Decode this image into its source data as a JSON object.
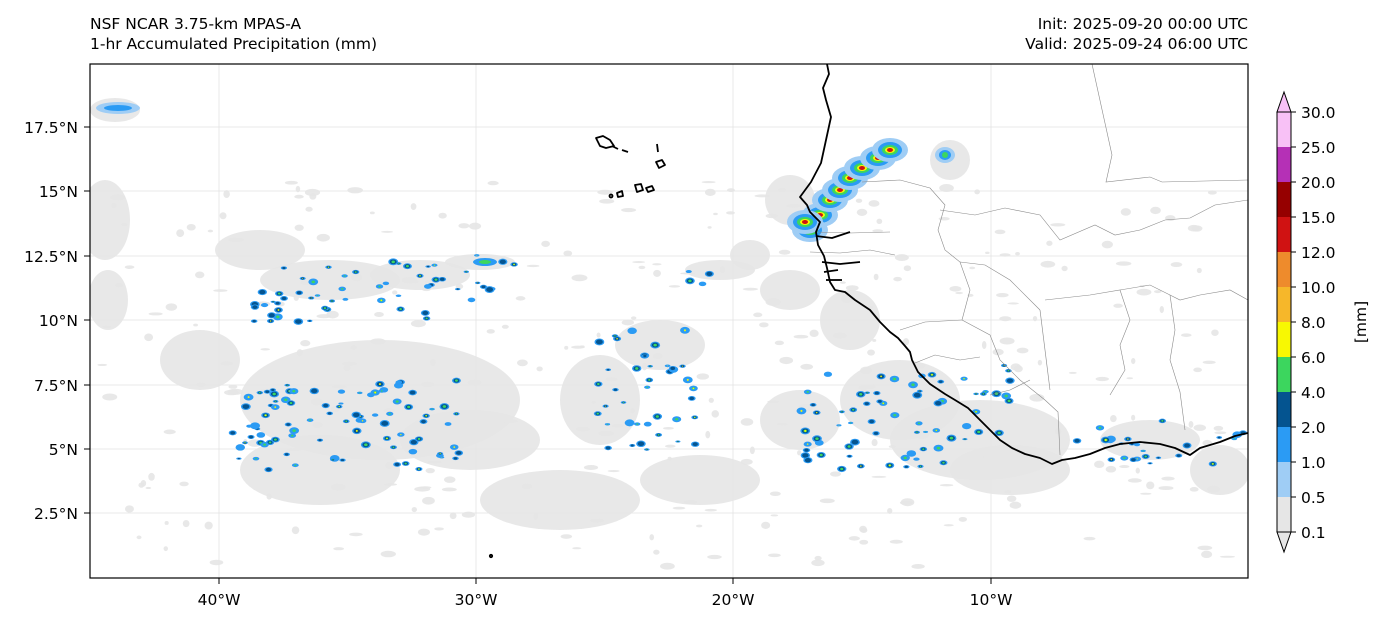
{
  "header": {
    "title_left_1": "NSF NCAR 3.75-km MPAS-A",
    "title_left_2": "1-hr Accumulated Precipitation (mm)",
    "init_label": "Init: 2025-09-20 00:00 UTC",
    "valid_label": "Valid: 2025-09-24 06:00 UTC"
  },
  "map": {
    "lat_ticks": [
      "17.5°N",
      "15°N",
      "12.5°N",
      "10°N",
      "7.5°N",
      "5°N",
      "2.5°N"
    ],
    "lon_ticks": [
      "40°W",
      "30°W",
      "20°W",
      "10°W"
    ],
    "gridlines": true
  },
  "colorbar": {
    "unit_label": "[mm]",
    "levels": [
      "0.1",
      "0.5",
      "1.0",
      "2.0",
      "4.0",
      "6.0",
      "8.0",
      "10.0",
      "12.0",
      "15.0",
      "20.0",
      "25.0",
      "30.0"
    ],
    "colors": [
      "#e6e6e6",
      "#9fcdf5",
      "#2b9bf4",
      "#045490",
      "#3cd65e",
      "#f8f802",
      "#f6b72a",
      "#ee8b2c",
      "#d01212",
      "#960000",
      "#b530b6",
      "#f8c1f6"
    ],
    "extend": "both"
  }
}
